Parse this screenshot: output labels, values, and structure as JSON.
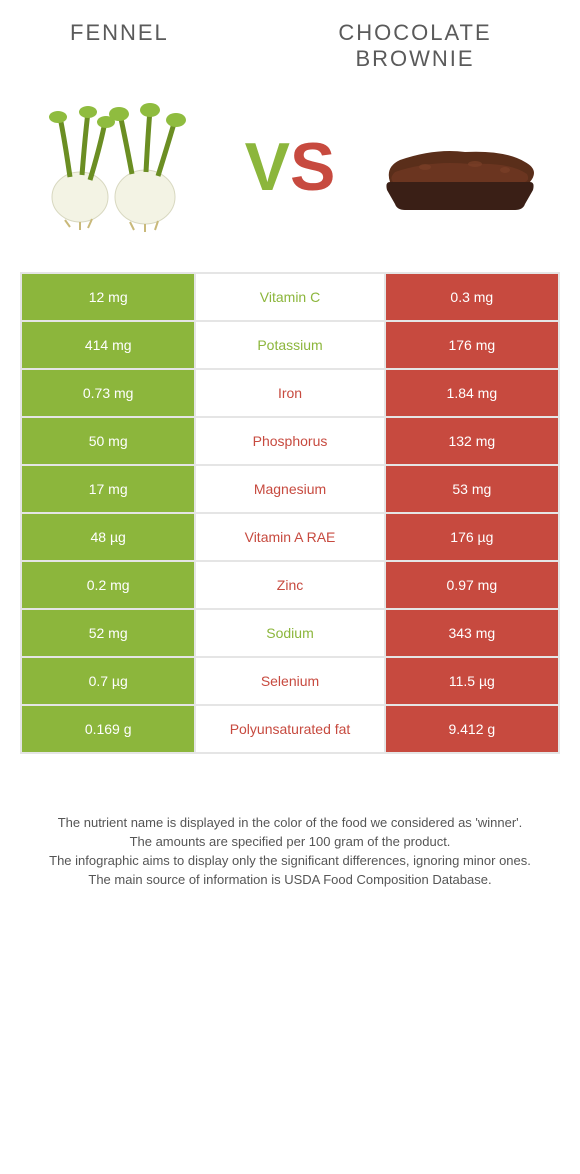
{
  "titles": {
    "left": "Fennel",
    "right": "Chocolate Brownie"
  },
  "vs": {
    "v": "V",
    "s": "S"
  },
  "colors": {
    "left_bg": "#8cb63c",
    "right_bg": "#c74a3f",
    "green_text": "#8cb63c",
    "red_text": "#c74a3f"
  },
  "rows": [
    {
      "left": "12 mg",
      "label": "Vitamin C",
      "right": "0.3 mg",
      "winner": "left"
    },
    {
      "left": "414 mg",
      "label": "Potassium",
      "right": "176 mg",
      "winner": "left"
    },
    {
      "left": "0.73 mg",
      "label": "Iron",
      "right": "1.84 mg",
      "winner": "right"
    },
    {
      "left": "50 mg",
      "label": "Phosphorus",
      "right": "132 mg",
      "winner": "right"
    },
    {
      "left": "17 mg",
      "label": "Magnesium",
      "right": "53 mg",
      "winner": "right"
    },
    {
      "left": "48 µg",
      "label": "Vitamin A RAE",
      "right": "176 µg",
      "winner": "right"
    },
    {
      "left": "0.2 mg",
      "label": "Zinc",
      "right": "0.97 mg",
      "winner": "right"
    },
    {
      "left": "52 mg",
      "label": "Sodium",
      "right": "343 mg",
      "winner": "left"
    },
    {
      "left": "0.7 µg",
      "label": "Selenium",
      "right": "11.5 µg",
      "winner": "right"
    },
    {
      "left": "0.169 g",
      "label": "Polyunsaturated fat",
      "right": "9.412 g",
      "winner": "right"
    }
  ],
  "notes": [
    "The nutrient name is displayed in the color of the food we considered as 'winner'.",
    "The amounts are specified per 100 gram of the product.",
    "The infographic aims to display only the significant differences, ignoring minor ones.",
    "The main source of information is USDA Food Composition Database."
  ]
}
